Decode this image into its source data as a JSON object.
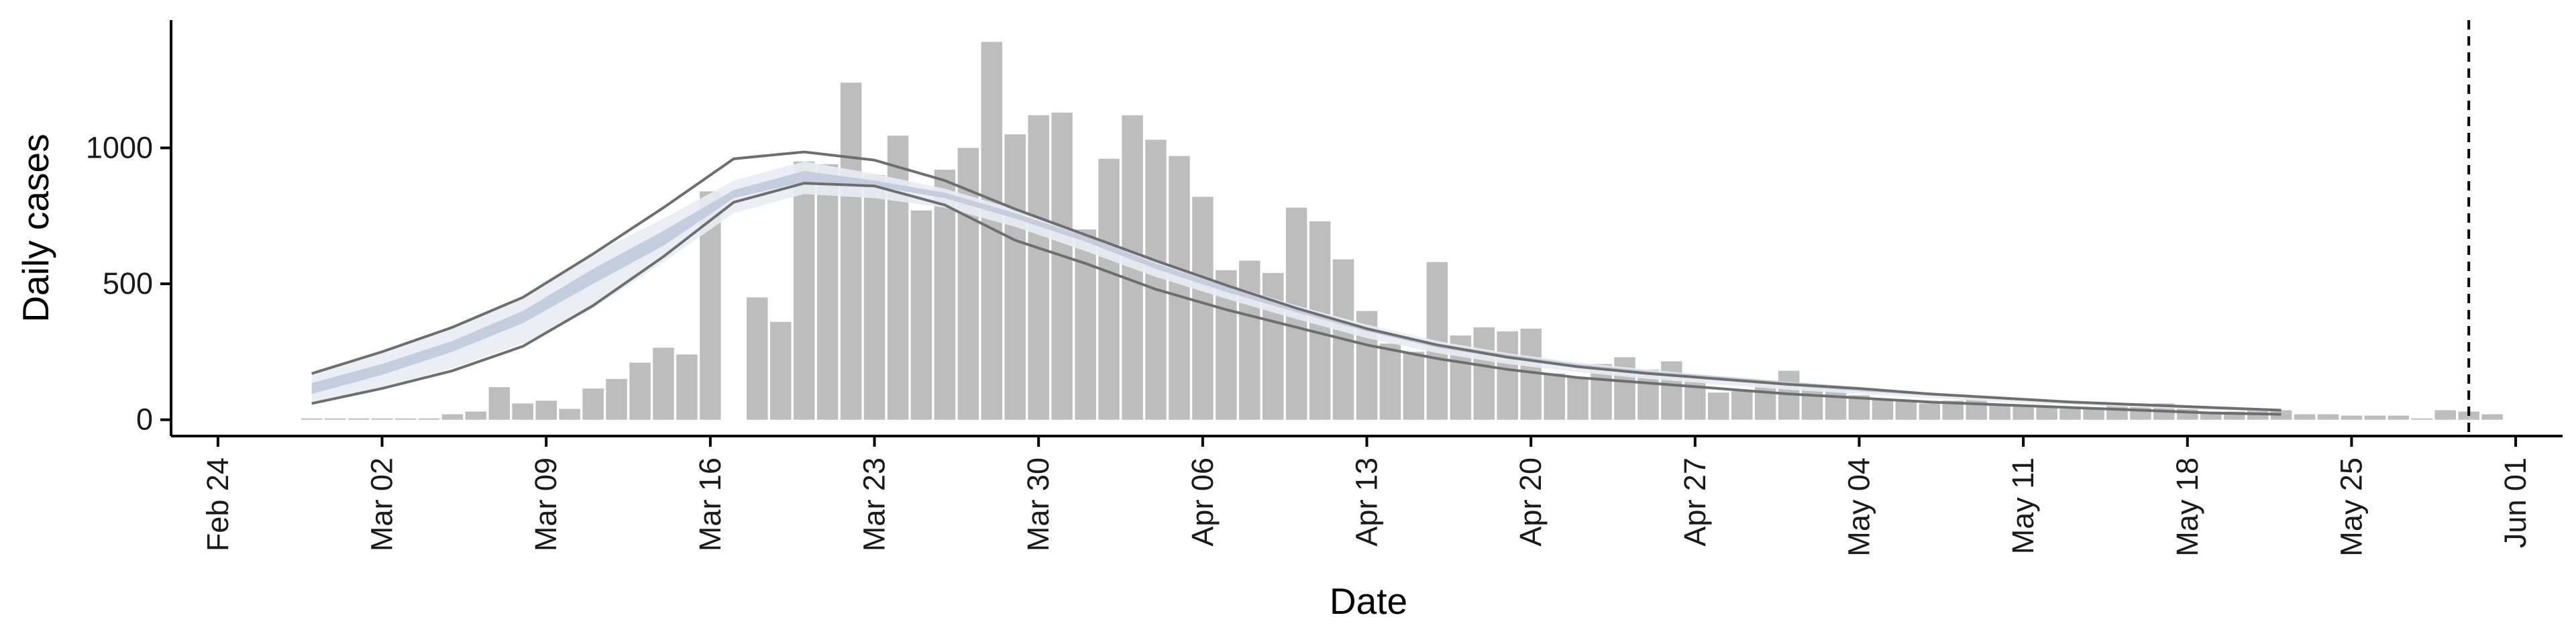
{
  "chart_data": {
    "type": "bar",
    "title": "",
    "xlabel": "Date",
    "ylabel": "Daily cases",
    "grid": false,
    "legend": "none",
    "x_tick_labels": [
      "Feb 24",
      "Mar 02",
      "Mar 09",
      "Mar 16",
      "Mar 23",
      "Mar 30",
      "Apr 06",
      "Apr 13",
      "Apr 20",
      "Apr 27",
      "May 04",
      "May 11",
      "May 18",
      "May 25",
      "Jun 01"
    ],
    "y_ticks": [
      0,
      500,
      1000
    ],
    "xlim": [
      "2020-02-22",
      "2020-06-03"
    ],
    "ylim": [
      -60,
      1470
    ],
    "vline_date": "2020-05-30",
    "colors": {
      "bars": "#bdbdbd",
      "band_outer": "#e9ecf4",
      "band_inner": "#c3cbdd",
      "band_edge": "#6e6e6e",
      "vline": "#000000"
    },
    "bar_start_date": "2020-02-28",
    "bar_values": [
      5,
      5,
      5,
      5,
      5,
      5,
      20,
      30,
      120,
      60,
      70,
      40,
      115,
      150,
      210,
      265,
      240,
      840,
      0,
      450,
      360,
      950,
      940,
      1240,
      900,
      1045,
      770,
      920,
      1000,
      1390,
      1050,
      1120,
      1130,
      700,
      960,
      1120,
      1030,
      970,
      820,
      550,
      585,
      540,
      780,
      730,
      590,
      400,
      280,
      250,
      580,
      310,
      340,
      325,
      335,
      170,
      155,
      205,
      230,
      185,
      215,
      165,
      100,
      105,
      140,
      180,
      120,
      110,
      90,
      75,
      70,
      60,
      70,
      80,
      55,
      55,
      45,
      40,
      40,
      55,
      55,
      60,
      40,
      30,
      30,
      40,
      35,
      20,
      20,
      15,
      15,
      15,
      5,
      35,
      30,
      20
    ],
    "band_dates": [
      "2020-02-28",
      "2020-03-02",
      "2020-03-05",
      "2020-03-08",
      "2020-03-11",
      "2020-03-14",
      "2020-03-17",
      "2020-03-20",
      "2020-03-23",
      "2020-03-26",
      "2020-03-29",
      "2020-04-01",
      "2020-04-04",
      "2020-04-07",
      "2020-04-10",
      "2020-04-13",
      "2020-04-16",
      "2020-04-19",
      "2020-04-22",
      "2020-04-25",
      "2020-04-28",
      "2020-05-01",
      "2020-05-04",
      "2020-05-07",
      "2020-05-10",
      "2020-05-13",
      "2020-05-16",
      "2020-05-19",
      "2020-05-22"
    ],
    "band_outer_lower": [
      60,
      120,
      190,
      280,
      410,
      580,
      760,
      830,
      815,
      780,
      710,
      620,
      525,
      445,
      370,
      300,
      245,
      205,
      175,
      150,
      130,
      110,
      95,
      80,
      65,
      55,
      45,
      35,
      30
    ],
    "band_outer_upper": [
      170,
      250,
      340,
      450,
      610,
      740,
      880,
      950,
      905,
      850,
      775,
      680,
      585,
      500,
      420,
      350,
      290,
      245,
      210,
      185,
      160,
      140,
      120,
      100,
      85,
      70,
      60,
      50,
      40
    ],
    "band_inner_lower": [
      95,
      165,
      250,
      355,
      500,
      640,
      815,
      875,
      860,
      815,
      740,
      655,
      555,
      470,
      395,
      325,
      265,
      225,
      190,
      165,
      145,
      125,
      105,
      90,
      75,
      60,
      50,
      40,
      35
    ],
    "band_inner_upper": [
      135,
      205,
      290,
      400,
      555,
      695,
      845,
      915,
      880,
      835,
      760,
      675,
      575,
      490,
      410,
      340,
      280,
      240,
      205,
      180,
      160,
      140,
      120,
      100,
      85,
      70,
      60,
      50,
      40
    ],
    "band_line_upper": [
      170,
      250,
      340,
      450,
      610,
      780,
      960,
      985,
      955,
      880,
      775,
      680,
      585,
      495,
      410,
      335,
      275,
      230,
      195,
      170,
      150,
      130,
      115,
      95,
      80,
      65,
      55,
      45,
      35
    ],
    "band_line_lower": [
      60,
      115,
      180,
      270,
      420,
      600,
      800,
      870,
      860,
      790,
      660,
      575,
      480,
      405,
      340,
      275,
      225,
      185,
      155,
      135,
      115,
      95,
      80,
      65,
      55,
      45,
      35,
      25,
      20
    ]
  }
}
